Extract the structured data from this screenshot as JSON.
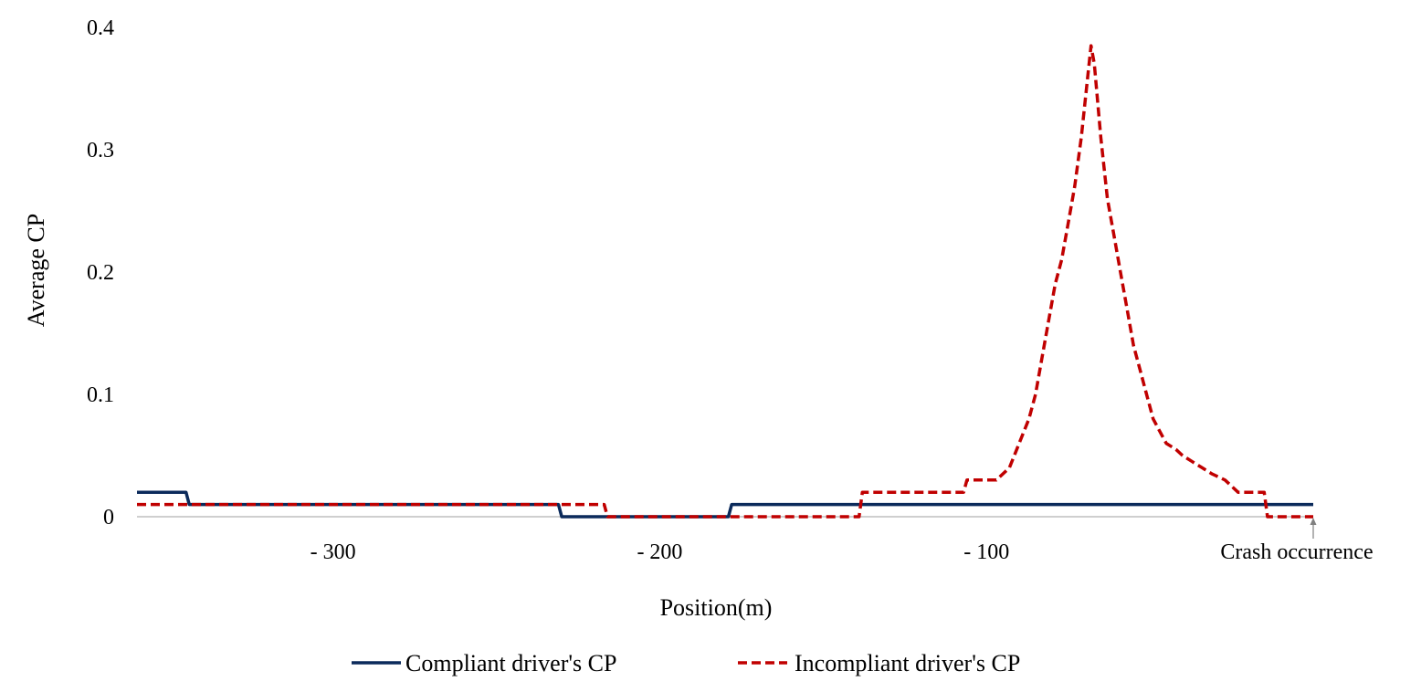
{
  "chart_data": {
    "type": "line",
    "title": "",
    "xlabel": "Position(m)",
    "ylabel": "Average CP",
    "xlim": [
      -360,
      0
    ],
    "ylim": [
      0,
      0.4
    ],
    "x_ticks": [
      {
        "value": -300,
        "label": "- 300"
      },
      {
        "value": -200,
        "label": "- 200"
      },
      {
        "value": -100,
        "label": "- 100"
      }
    ],
    "y_ticks": [
      {
        "value": 0,
        "label": "0"
      },
      {
        "value": 0.1,
        "label": "0.1"
      },
      {
        "value": 0.2,
        "label": "0.2"
      },
      {
        "value": 0.3,
        "label": "0.3"
      },
      {
        "value": 0.4,
        "label": "0.4"
      }
    ],
    "annotation": {
      "x": 0,
      "label": "Crash occurrence"
    },
    "grid": false,
    "legend_position": "bottom",
    "series": [
      {
        "name": "Compliant driver's CP",
        "color": "#0b2a5b",
        "style": "solid",
        "points": [
          [
            -360,
            0.02
          ],
          [
            -345,
            0.02
          ],
          [
            -344,
            0.01
          ],
          [
            -231,
            0.01
          ],
          [
            -230,
            0.0
          ],
          [
            -179,
            0.0
          ],
          [
            -178,
            0.01
          ],
          [
            0,
            0.01
          ]
        ]
      },
      {
        "name": "Incompliant driver's CP",
        "color": "#c00000",
        "style": "dashed",
        "points": [
          [
            -360,
            0.01
          ],
          [
            -217,
            0.01
          ],
          [
            -216,
            0.0
          ],
          [
            -139,
            0.0
          ],
          [
            -138,
            0.02
          ],
          [
            -107,
            0.02
          ],
          [
            -106,
            0.03
          ],
          [
            -97,
            0.03
          ],
          [
            -93,
            0.04
          ],
          [
            -90,
            0.06
          ],
          [
            -87,
            0.08
          ],
          [
            -85,
            0.1
          ],
          [
            -83,
            0.13
          ],
          [
            -81,
            0.16
          ],
          [
            -79,
            0.19
          ],
          [
            -77,
            0.21
          ],
          [
            -75,
            0.24
          ],
          [
            -73,
            0.27
          ],
          [
            -71,
            0.31
          ],
          [
            -69,
            0.36
          ],
          [
            -68,
            0.385
          ],
          [
            -67,
            0.37
          ],
          [
            -65,
            0.31
          ],
          [
            -63,
            0.26
          ],
          [
            -61,
            0.23
          ],
          [
            -59,
            0.2
          ],
          [
            -57,
            0.17
          ],
          [
            -55,
            0.14
          ],
          [
            -53,
            0.12
          ],
          [
            -51,
            0.1
          ],
          [
            -49,
            0.08
          ],
          [
            -47,
            0.07
          ],
          [
            -45,
            0.06
          ],
          [
            -42,
            0.055
          ],
          [
            -40,
            0.05
          ],
          [
            -37,
            0.045
          ],
          [
            -34,
            0.04
          ],
          [
            -31,
            0.035
          ],
          [
            -27,
            0.03
          ],
          [
            -23,
            0.02
          ],
          [
            -15,
            0.02
          ],
          [
            -14,
            0.0
          ],
          [
            0,
            0.0
          ]
        ]
      }
    ]
  }
}
